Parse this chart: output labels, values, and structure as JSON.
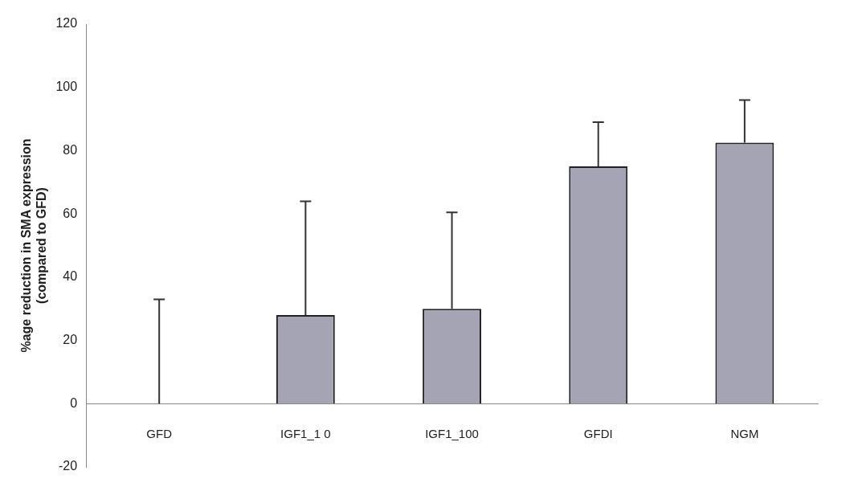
{
  "chart_data": {
    "type": "bar",
    "ylabel": "%age reduction in SMA expression\n(compared to GFD)",
    "categories": [
      "GFD",
      "IGF1_1 0",
      "IGF1_100",
      "GFDI",
      "NGM"
    ],
    "values": [
      0,
      28,
      30,
      75,
      82.5
    ],
    "errors": [
      [
        0,
        33
      ],
      [
        28,
        64
      ],
      [
        30,
        60.5
      ],
      [
        75,
        89
      ],
      [
        82.5,
        96
      ]
    ],
    "color": "#a4a4b4",
    "ylim": [
      -20,
      120
    ],
    "yticks": [
      -20,
      0,
      20,
      40,
      60,
      80,
      100,
      120
    ],
    "grid": false,
    "legend": false
  }
}
